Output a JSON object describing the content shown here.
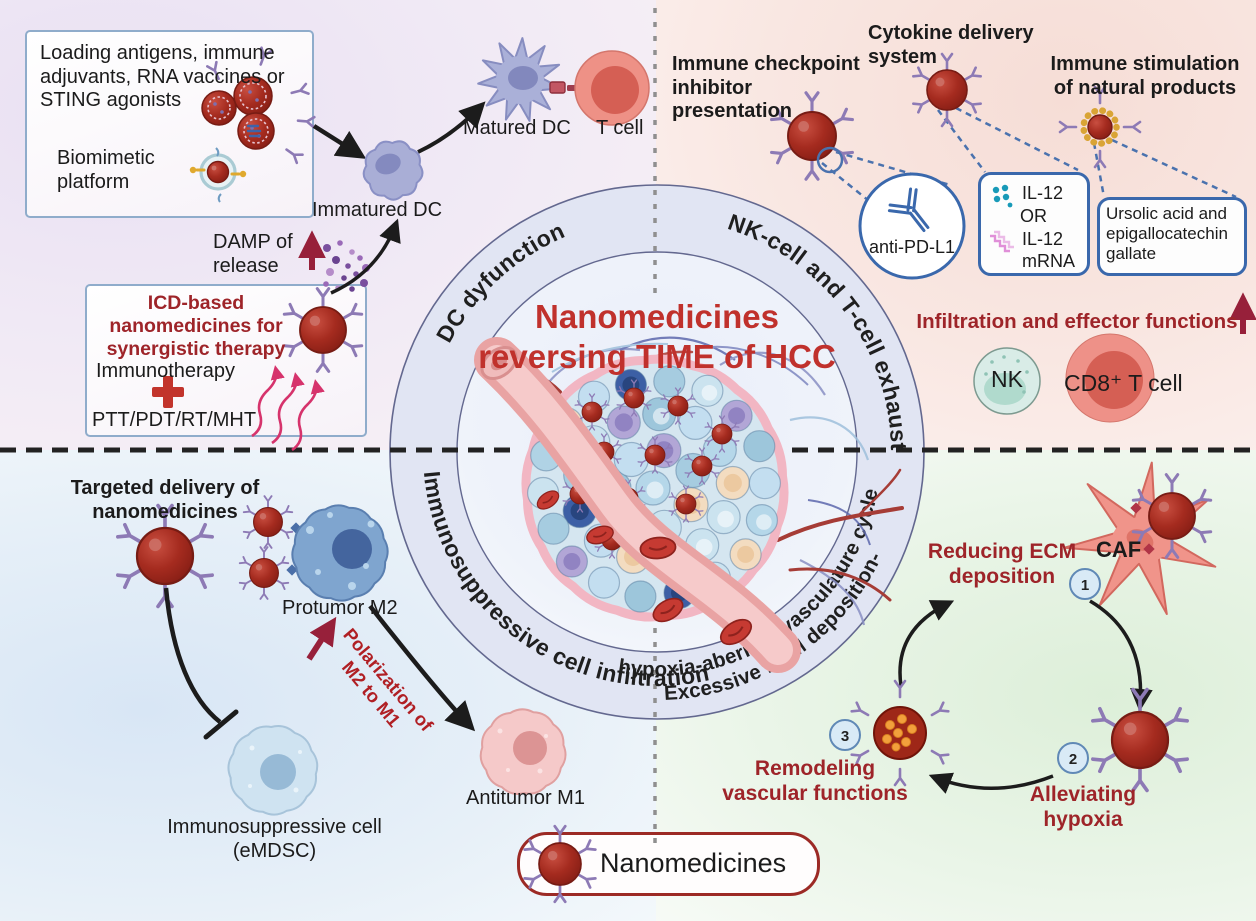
{
  "colors": {
    "title_red": "#c0312c",
    "label_dark_red": "#9e2429",
    "box_blue_border": "#3a68ac",
    "light_blue_border": "#8faccb",
    "legend_border": "#9c2a25",
    "ring_fill": "#e1e5f3",
    "nanoparticle_red": "#a62c21",
    "receptor_purple": "#8d7ab5"
  },
  "center": {
    "title_line1": "Nanomedicines",
    "title_line2": "reversing TIME of HCC"
  },
  "ring_labels": {
    "top_left": "DC dyfunction",
    "top_right": "NK-cell and T-cell exhaustion",
    "bottom_left": "Immunosuppressive cell infiltration",
    "bottom_right_line1": "Excessive ECM deposition-",
    "bottom_right_line2": "hypoxia-aberrant vasculature cycle"
  },
  "top_left": {
    "loading_box": "Loading antigens, immune adjuvants, RNA vaccines or STING agonists",
    "biomimetic": "Biomimetic platform",
    "damp": "DAMP of release",
    "immatured_dc": "Immatured DC",
    "matured_dc": "Matured DC",
    "t_cell": "T cell",
    "icd_title": "ICD-based nanomedicines for synergistic therapy",
    "immunotherapy": "Immunotherapy",
    "ptt": "PTT/PDT/RT/MHT"
  },
  "top_right": {
    "checkpoint": "Immune checkpoint inhibitor presentation",
    "cytokine": "Cytokine delivery system",
    "stimulation": "Immune stimulation of natural products",
    "anti_pdl1": "anti-PD-L1",
    "il12_top": "IL-12",
    "or": "OR",
    "il12_bottom": "IL-12",
    "mrna": "mRNA",
    "ursolic": "Ursolic acid and epigallocatechin gallate",
    "infiltration": "Infiltration and effector functions",
    "nk": "NK",
    "cd8": "CD8⁺ T cell"
  },
  "bottom_left": {
    "targeted": "Targeted delivery of nanomedicines",
    "protumor": "Protumor M2",
    "polarization": "Polarization of M2 to M1",
    "antitumor": "Antitumor M1",
    "emdsc": "Immunosuppressive cell (eMDSC)"
  },
  "bottom_right": {
    "reducing": "Reducing ECM deposition",
    "caf": "CAF",
    "step1": "1",
    "step2": "2",
    "step3": "3",
    "alleviating": "Alleviating hypoxia",
    "remodeling": "Remodeling vascular functions"
  },
  "legend": {
    "label": "Nanomedicines"
  }
}
